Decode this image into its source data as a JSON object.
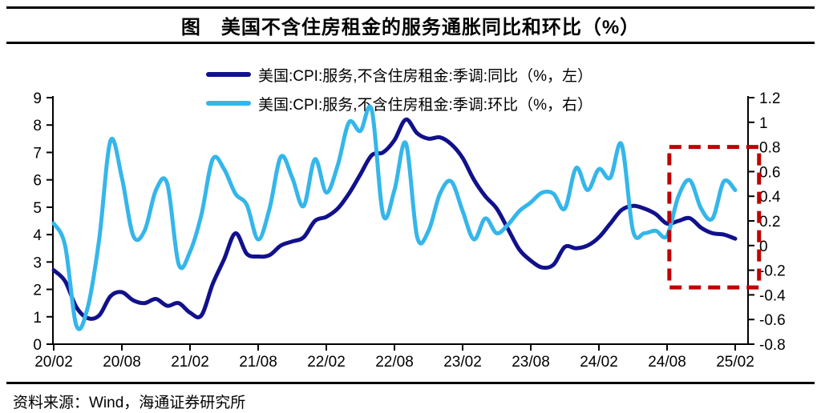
{
  "title": "图　美国不含住房租金的服务通胀同比和环比（%）",
  "source_note": "资料来源：Wind，海通证券研究所",
  "chart_data": {
    "type": "line",
    "title": "美国不含住房租金的服务通胀同比和环比（%）",
    "x_start": "2020-02",
    "x_end": "2025-02",
    "x_freq": "monthly",
    "x_tick_labels": [
      "20/02",
      "20/08",
      "21/02",
      "21/08",
      "22/02",
      "22/08",
      "23/02",
      "23/08",
      "24/02",
      "24/08",
      "25/02"
    ],
    "left_axis": {
      "min": 0,
      "max": 9,
      "ticks": [
        0,
        1,
        2,
        3,
        4,
        5,
        6,
        7,
        8,
        9
      ],
      "tick_labels": [
        "0",
        "1",
        "2",
        "3",
        "4",
        "5",
        "6",
        "7",
        "8",
        "9"
      ]
    },
    "right_axis": {
      "min": -0.8,
      "max": 1.2,
      "ticks": [
        -0.8,
        -0.6,
        -0.4,
        -0.2,
        0,
        0.2,
        0.4,
        0.6,
        0.8,
        1,
        1.2
      ],
      "tick_labels": [
        "-0.8",
        "-0.6",
        "-0.4",
        "-0.2",
        "0",
        "0.2",
        "0.4",
        "0.6",
        "0.8",
        "1",
        "1.2"
      ]
    },
    "grid": false,
    "legend_position": "top",
    "series": [
      {
        "name": "美国:CPI:服务,不含住房租金:季调:同比（%，左）",
        "axis": "left",
        "color": "#11118c",
        "values": [
          2.7,
          2.3,
          1.35,
          0.95,
          1.05,
          1.75,
          1.9,
          1.6,
          1.5,
          1.65,
          1.4,
          1.5,
          1.15,
          1.05,
          2.2,
          3.1,
          4.05,
          3.3,
          3.2,
          3.25,
          3.6,
          3.75,
          3.9,
          4.5,
          4.65,
          4.95,
          5.5,
          6.2,
          6.9,
          7.0,
          7.45,
          8.2,
          7.7,
          7.5,
          7.55,
          7.3,
          6.8,
          6.0,
          5.4,
          4.95,
          4.2,
          3.45,
          3.05,
          2.8,
          2.9,
          3.55,
          3.5,
          3.6,
          3.9,
          4.4,
          4.9,
          5.05,
          4.95,
          4.75,
          4.4,
          4.5,
          4.6,
          4.25,
          4.05,
          4.0,
          3.85
        ]
      },
      {
        "name": "美国:CPI:服务,不含住房租金:季调:环比（%，右）",
        "axis": "right",
        "color": "#35b6ea",
        "values": [
          0.18,
          0.0,
          -0.65,
          -0.5,
          0.05,
          0.85,
          0.55,
          0.08,
          0.12,
          0.45,
          0.5,
          -0.15,
          -0.05,
          0.25,
          0.7,
          0.62,
          0.42,
          0.33,
          0.05,
          0.3,
          0.72,
          0.55,
          0.32,
          0.7,
          0.43,
          0.65,
          1.0,
          0.93,
          1.1,
          0.25,
          0.45,
          0.83,
          0.07,
          0.12,
          0.42,
          0.52,
          0.28,
          0.05,
          0.22,
          0.1,
          0.17,
          0.28,
          0.35,
          0.43,
          0.42,
          0.3,
          0.63,
          0.45,
          0.62,
          0.55,
          0.82,
          0.12,
          0.1,
          0.12,
          0.08,
          0.4,
          0.53,
          0.3,
          0.22,
          0.52,
          0.45
        ]
      }
    ],
    "highlight_box": {
      "axis": "right",
      "month_start": 54.2,
      "month_end": 62.1,
      "value_top": 0.8,
      "value_bottom": -0.34,
      "color": "#c00000",
      "style": "dashed"
    }
  }
}
